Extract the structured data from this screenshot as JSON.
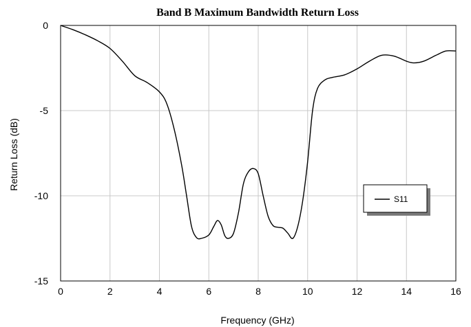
{
  "chart_data": {
    "type": "line",
    "title": "Band B Maximum Bandwidth Return Loss",
    "xlabel": "Frequency (GHz)",
    "ylabel": "Return Loss (dB)",
    "xlim": [
      0,
      16
    ],
    "ylim": [
      -15,
      0
    ],
    "x_ticks": [
      "0",
      "2",
      "4",
      "6",
      "8",
      "10",
      "12",
      "14",
      "16"
    ],
    "y_ticks": [
      "0",
      "-5",
      "-10",
      "-15"
    ],
    "grid": true,
    "legend_position": "right",
    "series": [
      {
        "name": "S11",
        "color": "#000000",
        "x": [
          0,
          0.5,
          1.0,
          1.5,
          2.0,
          2.5,
          3.0,
          3.5,
          4.0,
          4.3,
          4.6,
          4.9,
          5.1,
          5.3,
          5.5,
          5.7,
          6.0,
          6.2,
          6.35,
          6.5,
          6.65,
          6.8,
          7.0,
          7.2,
          7.4,
          7.6,
          7.8,
          8.0,
          8.2,
          8.4,
          8.6,
          8.8,
          9.0,
          9.2,
          9.4,
          9.6,
          9.8,
          10.0,
          10.2,
          10.4,
          10.7,
          11.0,
          11.5,
          12.0,
          12.5,
          13.0,
          13.5,
          14.0,
          14.3,
          14.7,
          15.2,
          15.6,
          16.0
        ],
        "y": [
          0,
          -0.25,
          -0.55,
          -0.9,
          -1.35,
          -2.1,
          -2.95,
          -3.35,
          -3.9,
          -4.6,
          -6.1,
          -8.2,
          -10.0,
          -11.8,
          -12.45,
          -12.5,
          -12.3,
          -11.8,
          -11.45,
          -11.7,
          -12.35,
          -12.5,
          -12.2,
          -11.0,
          -9.3,
          -8.6,
          -8.4,
          -8.7,
          -10.0,
          -11.2,
          -11.75,
          -11.85,
          -11.9,
          -12.2,
          -12.5,
          -11.8,
          -10.3,
          -8.0,
          -5.0,
          -3.7,
          -3.2,
          -3.05,
          -2.9,
          -2.55,
          -2.1,
          -1.75,
          -1.8,
          -2.1,
          -2.2,
          -2.1,
          -1.75,
          -1.5,
          -1.5
        ]
      }
    ]
  }
}
